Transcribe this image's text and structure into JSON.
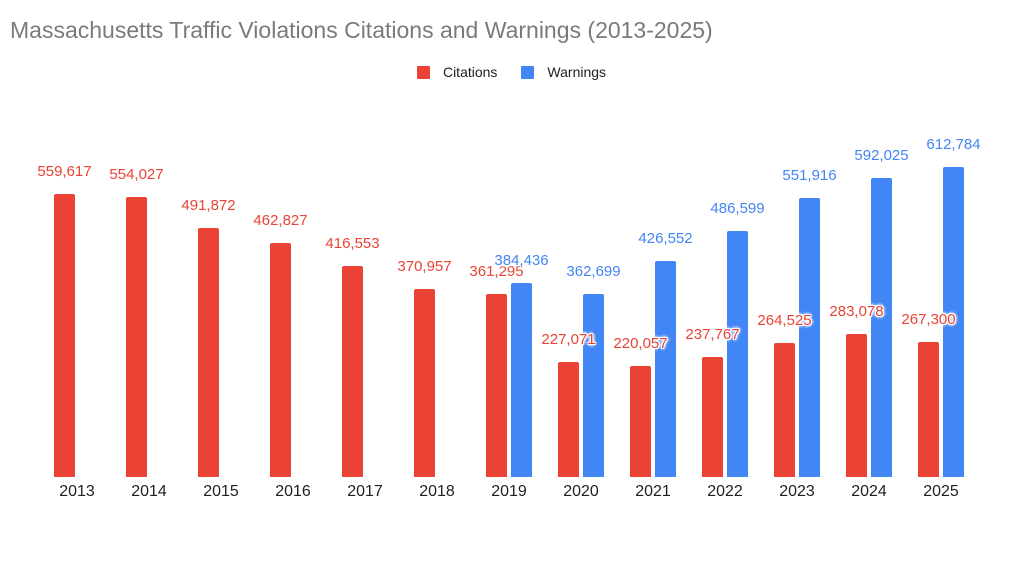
{
  "title": "Massachusetts Traffic Violations Citations and Warnings (2013-2025)",
  "legend": {
    "items": [
      {
        "label": "Citations",
        "color": "#EA4335"
      },
      {
        "label": "Warnings",
        "color": "#4285F4"
      }
    ]
  },
  "colors": {
    "citations": "#EA4335",
    "warnings": "#4285F4",
    "title_text": "#7a7a7a",
    "axis_text": "#1f1f1f",
    "background": "#ffffff"
  },
  "chart_data": {
    "type": "bar",
    "title": "Massachusetts Traffic Violations Citations and Warnings (2013-2025)",
    "xlabel": "",
    "ylabel": "",
    "grid": false,
    "legend_position": "top-center",
    "data_labels": true,
    "ylim": [
      0,
      650000
    ],
    "categories": [
      "2013",
      "2014",
      "2015",
      "2016",
      "2017",
      "2018",
      "2019",
      "2020",
      "2021",
      "2022",
      "2023",
      "2024",
      "2025"
    ],
    "series": [
      {
        "name": "Citations",
        "color": "#EA4335",
        "values": [
          559617,
          554027,
          491872,
          462827,
          416553,
          370957,
          361295,
          227071,
          220057,
          237767,
          264525,
          283078,
          267300
        ],
        "labels": [
          "559,617",
          "554,027",
          "491,872",
          "462,827",
          "416,553",
          "370,957",
          "361,295",
          "227,071",
          "220,057",
          "237,767",
          "264,525",
          "283,078",
          "267,300"
        ]
      },
      {
        "name": "Warnings",
        "color": "#4285F4",
        "values": [
          null,
          null,
          null,
          null,
          null,
          null,
          384436,
          362699,
          426552,
          486599,
          551916,
          592025,
          612784
        ],
        "labels": [
          null,
          null,
          null,
          null,
          null,
          null,
          "384,436",
          "362,699",
          "426,552",
          "486,599",
          "551,916",
          "592,025",
          "612,784"
        ]
      }
    ]
  }
}
